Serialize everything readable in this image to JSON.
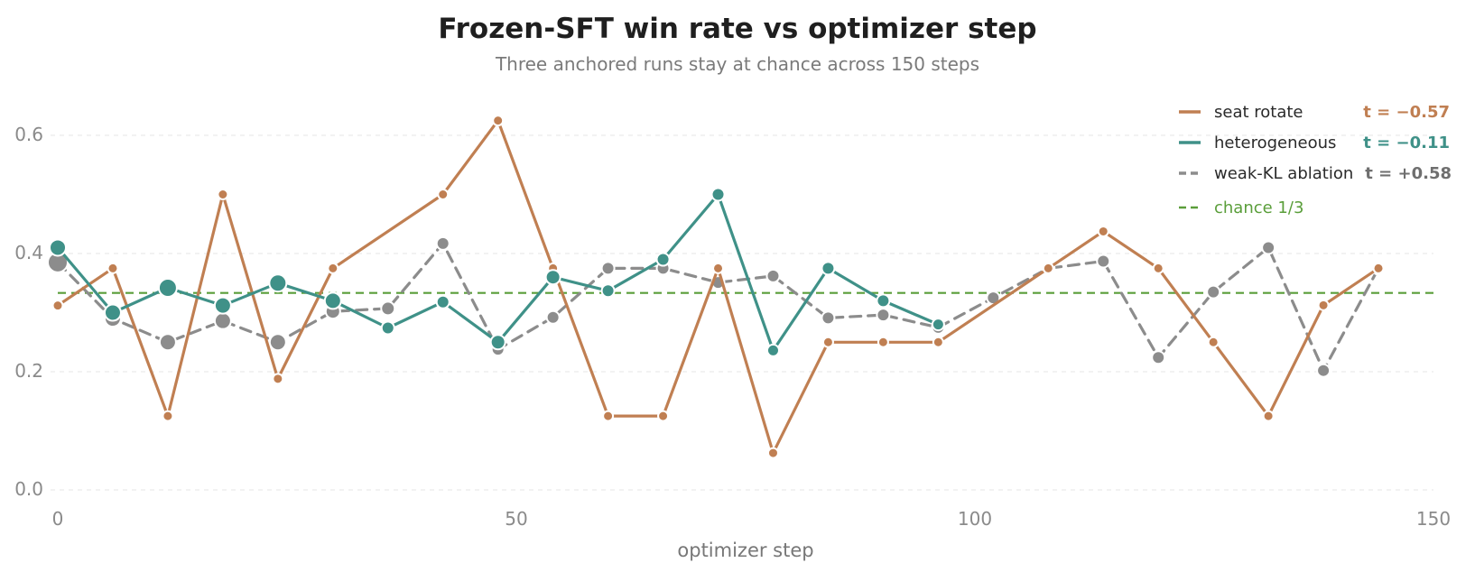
{
  "chart_data": {
    "type": "line",
    "title": "Frozen-SFT win rate vs optimizer step",
    "subtitle": "Three anchored runs stay at chance across 150 steps",
    "xlabel": "optimizer step",
    "ylabel": "",
    "xlim": [
      0,
      150
    ],
    "ylim": [
      0,
      0.65
    ],
    "x_ticks": [
      "0",
      "50",
      "100",
      "150"
    ],
    "y_ticks": [
      "0.0",
      "0.2",
      "0.4",
      "0.6"
    ],
    "grid": "horizontal dashed",
    "legend_position": "top-right",
    "reference_line": {
      "name": "chance 1/3",
      "y": 0.3333,
      "color": "#5a9e3a"
    },
    "series": [
      {
        "name": "seat rotate",
        "stat": "t = −0.57",
        "color": "#c07f52",
        "dashed": false,
        "marker": "small",
        "points": [
          [
            0,
            0.312
          ],
          [
            6,
            0.375
          ],
          [
            12,
            0.125
          ],
          [
            18,
            0.5
          ],
          [
            24,
            0.188
          ],
          [
            30,
            0.375
          ],
          [
            42,
            0.5
          ],
          [
            48,
            0.625
          ],
          [
            54,
            0.375
          ],
          [
            60,
            0.125
          ],
          [
            66,
            0.125
          ],
          [
            72,
            0.375
          ],
          [
            78,
            0.0625
          ],
          [
            84,
            0.25
          ],
          [
            90,
            0.25
          ],
          [
            96,
            0.25
          ],
          [
            108,
            0.375
          ],
          [
            114,
            0.4375
          ],
          [
            120,
            0.375
          ],
          [
            126,
            0.25
          ],
          [
            132,
            0.125
          ],
          [
            138,
            0.3125
          ],
          [
            144,
            0.375
          ]
        ]
      },
      {
        "name": "heterogeneous",
        "stat": "t = −0.11",
        "color": "#3f9188",
        "dashed": false,
        "marker": "mixed",
        "points": [
          [
            0,
            0.41,
            9
          ],
          [
            6,
            0.3,
            9
          ],
          [
            12,
            0.342,
            10
          ],
          [
            18,
            0.312,
            9
          ],
          [
            24,
            0.35,
            9.5
          ],
          [
            30,
            0.32,
            9
          ],
          [
            36,
            0.274,
            7
          ],
          [
            42,
            0.318,
            7
          ],
          [
            48,
            0.25,
            8
          ],
          [
            54,
            0.36,
            8
          ],
          [
            60,
            0.337,
            7
          ],
          [
            66,
            0.39,
            7
          ],
          [
            72,
            0.5,
            7
          ],
          [
            78,
            0.236,
            6.5
          ],
          [
            84,
            0.375,
            7
          ],
          [
            90,
            0.32,
            7
          ],
          [
            96,
            0.28,
            6.5
          ]
        ]
      },
      {
        "name": "weak-KL ablation",
        "stat": "t = +0.58",
        "color": "#8c8c8c",
        "dashed": true,
        "marker": "mixed",
        "points": [
          [
            0,
            0.385,
            11
          ],
          [
            6,
            0.29,
            9
          ],
          [
            12,
            0.25,
            9
          ],
          [
            18,
            0.286,
            9
          ],
          [
            24,
            0.25,
            9
          ],
          [
            30,
            0.302,
            8
          ],
          [
            36,
            0.307,
            7.5
          ],
          [
            42,
            0.417,
            7
          ],
          [
            48,
            0.238,
            7
          ],
          [
            54,
            0.292,
            7
          ],
          [
            60,
            0.375,
            7
          ],
          [
            66,
            0.375,
            7
          ],
          [
            72,
            0.351,
            7
          ],
          [
            78,
            0.362,
            7
          ],
          [
            84,
            0.291,
            7
          ],
          [
            90,
            0.296,
            7
          ],
          [
            96,
            0.275,
            7
          ],
          [
            102,
            0.325,
            7
          ],
          [
            108,
            0.375,
            7
          ],
          [
            114,
            0.387,
            7
          ],
          [
            120,
            0.224,
            7
          ],
          [
            126,
            0.335,
            7
          ],
          [
            132,
            0.41,
            7
          ],
          [
            138,
            0.202,
            7
          ],
          [
            144,
            0.375,
            7
          ]
        ]
      }
    ]
  }
}
